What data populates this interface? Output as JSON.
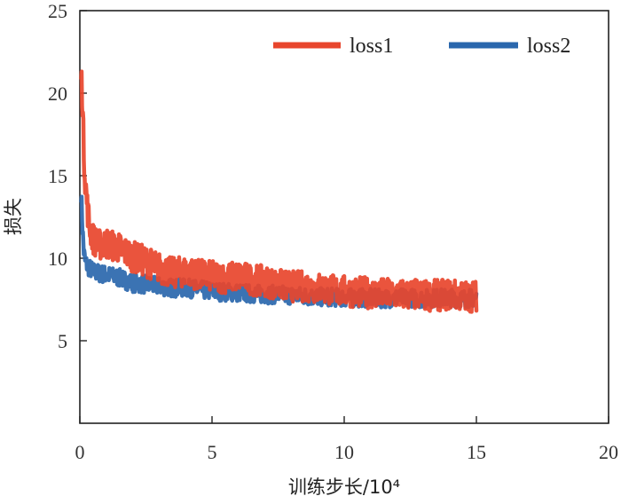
{
  "chart_data": {
    "type": "line",
    "xlabel": "训练步长/10⁴",
    "ylabel": "损失",
    "xlim": [
      0,
      20
    ],
    "ylim": [
      0,
      25
    ],
    "x_ticks": [
      "0",
      "5",
      "10",
      "15",
      "20"
    ],
    "y_ticks": [
      "5",
      "10",
      "15",
      "20",
      "25"
    ],
    "grid": false,
    "legend_position": "top-right",
    "series": [
      {
        "name": "loss1",
        "color": "#e8452c",
        "x": [
          0.05,
          0.1,
          0.15,
          0.2,
          0.3,
          0.4,
          0.5,
          0.7,
          1.0,
          1.5,
          2.0,
          2.5,
          3.0,
          3.5,
          4.0,
          4.5,
          5.0,
          5.5,
          6.0,
          6.5,
          7.0,
          7.5,
          8.0,
          8.5,
          9.0,
          9.5,
          10.0,
          10.5,
          11.0,
          11.5,
          12.0,
          12.5,
          13.0,
          13.5,
          14.0,
          14.5,
          15.0
        ],
        "values": [
          21.2,
          19.5,
          16.5,
          14.8,
          12.8,
          11.7,
          11.2,
          10.8,
          10.9,
          10.6,
          10.1,
          9.8,
          9.4,
          9.1,
          9.2,
          9.0,
          8.9,
          8.8,
          8.9,
          8.7,
          8.6,
          8.4,
          8.3,
          8.3,
          8.2,
          8.1,
          8.0,
          7.95,
          7.9,
          7.85,
          7.8,
          7.8,
          7.75,
          7.75,
          7.8,
          7.7,
          7.7
        ]
      },
      {
        "name": "loss2",
        "color": "#2a67ad",
        "x": [
          0.05,
          0.1,
          0.15,
          0.2,
          0.3,
          0.5,
          0.7,
          1.0,
          1.5,
          2.0,
          2.5,
          3.0,
          3.5,
          4.0,
          4.5,
          5.0,
          5.5,
          6.0,
          6.5,
          7.0,
          7.5,
          8.0,
          8.5,
          9.0,
          9.5,
          10.0,
          10.5,
          11.0,
          11.5,
          12.0,
          12.5,
          13.0,
          13.5,
          14.0,
          14.5,
          15.0
        ],
        "values": [
          14.0,
          11.8,
          10.4,
          9.8,
          9.5,
          9.2,
          9.1,
          9.0,
          8.8,
          8.5,
          8.4,
          8.3,
          8.2,
          8.2,
          8.1,
          8.0,
          7.95,
          7.9,
          7.85,
          7.8,
          7.8,
          7.75,
          7.7,
          7.65,
          7.65,
          7.6,
          7.6,
          7.6,
          7.55,
          7.6,
          7.6,
          7.55,
          7.6,
          7.6,
          7.55,
          7.6
        ]
      }
    ]
  }
}
